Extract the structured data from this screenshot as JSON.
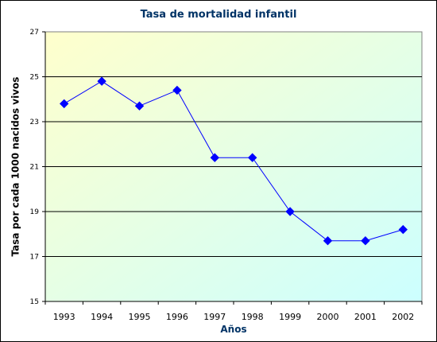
{
  "chart_data": {
    "type": "line",
    "title": "Tasa de mortalidad infantil",
    "xlabel": "Años",
    "ylabel": "Tasa por cada 1000 nacidos vivos",
    "categories": [
      "1993",
      "1994",
      "1995",
      "1996",
      "1997",
      "1998",
      "1999",
      "2000",
      "2001",
      "2002"
    ],
    "values": [
      23.8,
      24.8,
      23.7,
      24.4,
      21.4,
      21.4,
      19.0,
      17.7,
      17.7,
      18.2
    ],
    "ylim": [
      15,
      27
    ],
    "yticks": [
      "15",
      "17",
      "19",
      "21",
      "23",
      "25",
      "27"
    ],
    "grid": true,
    "legend": "none",
    "colors": {
      "series": "#0000FF",
      "gridline": "#000000",
      "background_gradient": [
        "#FFFFCC",
        "#CCFFFF"
      ],
      "title": "#003366"
    }
  }
}
